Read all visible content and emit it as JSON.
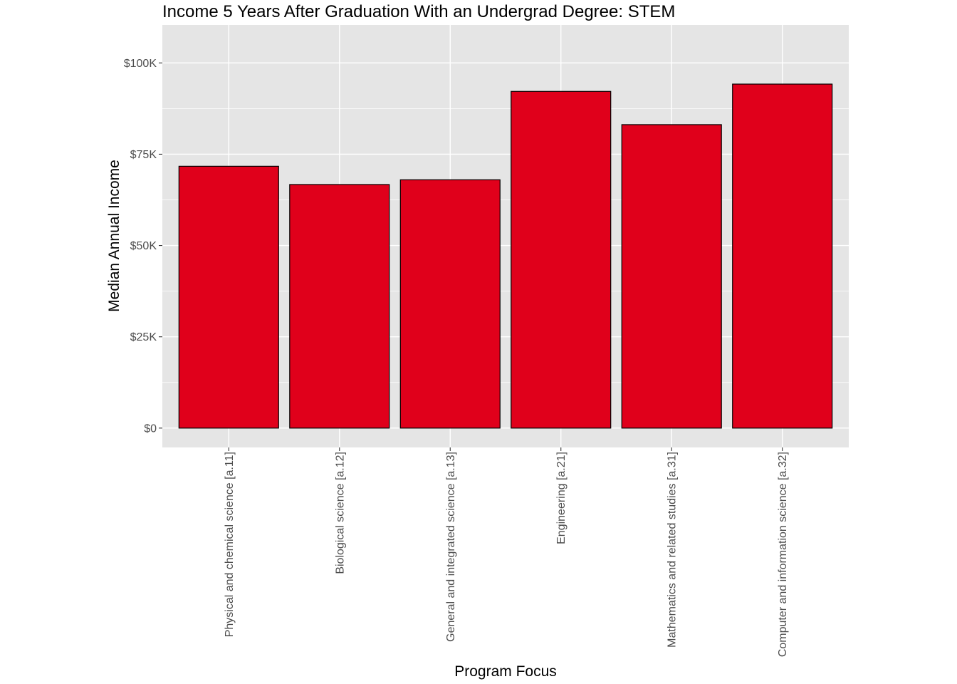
{
  "chart_data": {
    "type": "bar",
    "title": "Income 5 Years After Graduation With an Undergrad Degree: STEM",
    "xlabel": "Program Focus",
    "ylabel": "Median Annual Income",
    "categories": [
      "Physical and chemical science [a.11]",
      "Biological science [a.12]",
      "General and integrated science [a.13]",
      "Engineering [a.21]",
      "Mathematics and related studies [a.31]",
      "Computer and information science [a.32]"
    ],
    "values": [
      71700,
      66700,
      68000,
      92200,
      83100,
      94200
    ],
    "ylim": [
      -5300,
      110400
    ],
    "yticks": [
      0,
      25000,
      50000,
      75000,
      100000
    ],
    "ytick_labels": [
      "$0",
      "$25K",
      "$50K",
      "$75K",
      "$100K"
    ],
    "colors": {
      "bar_fill": "#e0001b",
      "bar_stroke": "#000000",
      "panel_background": "#e5e5e5",
      "grid": "#ffffff"
    },
    "grid": true,
    "legend": "none"
  }
}
